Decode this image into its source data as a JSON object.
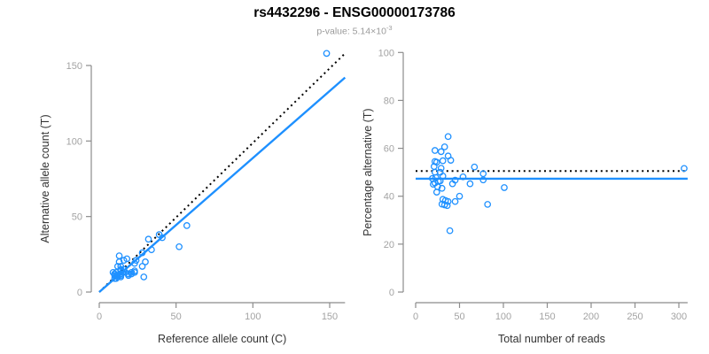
{
  "header": {
    "title": "rs4432296 - ENSG00000173786",
    "subtitle_prefix": "p-value: 5.14×10",
    "subtitle_exponent": "-3"
  },
  "colors": {
    "point_blue": "#1E90FF",
    "fit_blue": "#1E90FF",
    "dotted_black": "#000000",
    "axis_gray": "#8c8c8c",
    "tick_label_gray": "#a3a3a3",
    "axis_title_gray": "#333333"
  },
  "chart_data": [
    {
      "type": "scatter",
      "panel": "left",
      "xlabel": "Reference allele count (C)",
      "ylabel": "Alternative allele count (T)",
      "xlim": [
        0,
        160
      ],
      "ylim": [
        0,
        160
      ],
      "xticks": [
        0,
        50,
        100,
        150
      ],
      "yticks": [
        0,
        50,
        100,
        150
      ],
      "grid": false,
      "legend": "none",
      "marker": "open-circle",
      "points": [
        [
          148,
          158
        ],
        [
          13,
          24
        ],
        [
          13,
          20
        ],
        [
          9,
          13
        ],
        [
          12,
          17
        ],
        [
          16,
          21
        ],
        [
          14,
          17
        ],
        [
          10,
          12
        ],
        [
          18,
          22
        ],
        [
          11,
          13
        ],
        [
          10,
          11
        ],
        [
          14,
          15
        ],
        [
          32,
          35
        ],
        [
          11,
          11
        ],
        [
          14,
          14
        ],
        [
          16,
          15
        ],
        [
          39,
          38
        ],
        [
          10,
          9
        ],
        [
          12,
          11
        ],
        [
          15,
          13
        ],
        [
          24,
          21
        ],
        [
          28,
          26
        ],
        [
          41,
          36
        ],
        [
          12,
          10
        ],
        [
          14,
          12
        ],
        [
          34,
          28
        ],
        [
          11,
          9
        ],
        [
          14,
          11
        ],
        [
          17,
          13
        ],
        [
          23,
          19
        ],
        [
          57,
          44
        ],
        [
          14,
          10
        ],
        [
          19,
          12
        ],
        [
          21,
          13
        ],
        [
          23,
          14
        ],
        [
          19,
          11
        ],
        [
          21,
          12
        ],
        [
          23,
          13
        ],
        [
          28,
          17
        ],
        [
          30,
          20
        ],
        [
          52,
          30
        ],
        [
          29,
          10
        ]
      ],
      "lines": [
        {
          "name": "identity-line",
          "style": "dotted",
          "color": "#000000",
          "from": [
            0,
            0
          ],
          "to": [
            160,
            158
          ]
        },
        {
          "name": "fit-line",
          "style": "solid",
          "color": "#1E90FF",
          "from": [
            0,
            0
          ],
          "to": [
            160,
            142
          ]
        }
      ]
    },
    {
      "type": "scatter",
      "panel": "right",
      "xlabel": "Total number of reads",
      "ylabel": "Percentage alternative (T)",
      "xlim": [
        0,
        310
      ],
      "ylim": [
        0,
        100
      ],
      "xticks": [
        0,
        50,
        100,
        150,
        200,
        250,
        300
      ],
      "yticks": [
        0,
        20,
        40,
        60,
        80,
        100
      ],
      "grid": false,
      "legend": "none",
      "marker": "open-circle",
      "points": [
        [
          306,
          51.6
        ],
        [
          37,
          64.9
        ],
        [
          33,
          60.6
        ],
        [
          22,
          59.1
        ],
        [
          29,
          58.6
        ],
        [
          37,
          56.8
        ],
        [
          31,
          54.8
        ],
        [
          22,
          54.5
        ],
        [
          40,
          55.0
        ],
        [
          24,
          54.2
        ],
        [
          21,
          52.4
        ],
        [
          29,
          51.7
        ],
        [
          67,
          52.2
        ],
        [
          22,
          50.0
        ],
        [
          28,
          50.0
        ],
        [
          31,
          48.4
        ],
        [
          77,
          49.4
        ],
        [
          19,
          47.4
        ],
        [
          23,
          47.8
        ],
        [
          28,
          46.4
        ],
        [
          45,
          46.7
        ],
        [
          54,
          48.1
        ],
        [
          77,
          46.8
        ],
        [
          22,
          45.5
        ],
        [
          26,
          46.2
        ],
        [
          62,
          45.2
        ],
        [
          20,
          45.0
        ],
        [
          25,
          44.0
        ],
        [
          30,
          43.3
        ],
        [
          42,
          45.2
        ],
        [
          101,
          43.6
        ],
        [
          24,
          41.7
        ],
        [
          31,
          38.7
        ],
        [
          34,
          38.2
        ],
        [
          37,
          37.8
        ],
        [
          30,
          36.7
        ],
        [
          33,
          36.4
        ],
        [
          36,
          36.1
        ],
        [
          45,
          37.8
        ],
        [
          50,
          40.0
        ],
        [
          82,
          36.6
        ],
        [
          39,
          25.6
        ]
      ],
      "lines": [
        {
          "name": "expected-line",
          "style": "dotted",
          "color": "#000000",
          "y": 50.5
        },
        {
          "name": "fit-line",
          "style": "solid",
          "color": "#1E90FF",
          "y": 47.3
        }
      ]
    }
  ]
}
